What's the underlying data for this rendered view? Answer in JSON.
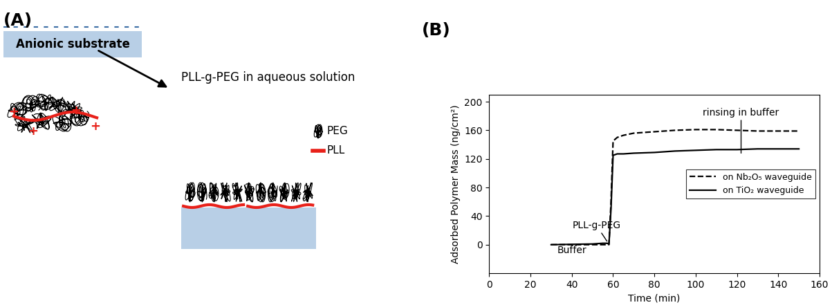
{
  "panel_a": {
    "label": "(A)",
    "substrate": "Anionic substrate",
    "process": "PLL-g-PEG in aqueous solution",
    "charge": "+",
    "legend": [
      {
        "name": "PEG",
        "color": "#000000"
      },
      {
        "name": "PLL",
        "color": "#e8211a"
      }
    ]
  },
  "chart_data": {
    "type": "line",
    "panel_label": "(B)",
    "x_label": "Time (min)",
    "y_label": "Adsorbed Polymer Mass (ng/cm²)",
    "xlim": [
      0,
      160
    ],
    "xticks": [
      0,
      20,
      40,
      60,
      80,
      100,
      120,
      140,
      160
    ],
    "ylim": [
      -40,
      210
    ],
    "yticks": [
      0,
      40,
      80,
      120,
      160,
      200
    ],
    "legend": "center right",
    "x": [
      30,
      50,
      55,
      57,
      58,
      59,
      60,
      62,
      65,
      70,
      80,
      90,
      100,
      110,
      120,
      130,
      140,
      150
    ],
    "series": [
      {
        "name": "on Nb₂O₅ waveguide",
        "color": "#000000",
        "line_style": "dashed",
        "values": [
          0,
          0,
          0,
          0,
          0,
          60,
          145,
          150,
          153,
          156,
          158,
          160,
          161,
          161,
          160,
          159,
          159,
          159
        ]
      },
      {
        "name": "on TiO₂ waveguide",
        "color": "#000000",
        "line_style": "solid",
        "values": [
          0,
          1,
          2,
          2,
          1,
          50,
          125,
          127,
          127,
          128,
          129,
          131,
          132,
          133,
          133,
          134,
          134,
          134
        ]
      }
    ],
    "annotations": [
      {
        "text": "rinsing in buffer",
        "x": 122,
        "y": 128,
        "text_x": 122,
        "text_y": 178
      },
      {
        "text": "PLL-g-PEG",
        "x": 57,
        "y": 5,
        "text_x": 52,
        "text_y": 20
      },
      {
        "text": "Buffer",
        "x": 40,
        "y": -8
      }
    ]
  }
}
